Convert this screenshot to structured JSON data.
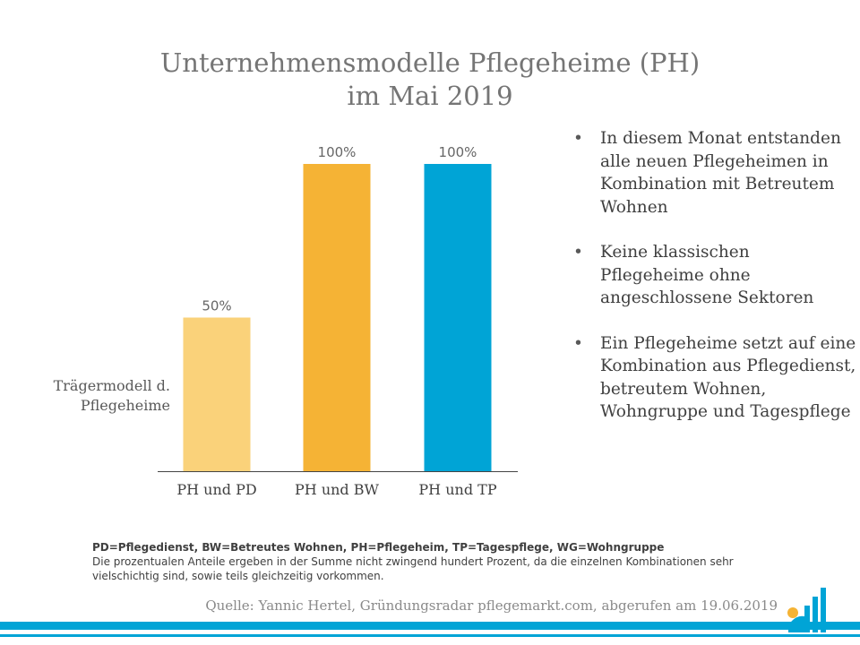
{
  "header": {
    "title_line1": "Unternehmensmodelle Pflegeheime (PH)",
    "title_line2": "im Mai 2019"
  },
  "chart_data": {
    "type": "bar",
    "categories": [
      "PH und PD",
      "PH und BW",
      "PH und TP"
    ],
    "values": [
      50,
      100,
      100
    ],
    "value_labels": [
      "50%",
      "100%",
      "100%"
    ],
    "colors": [
      "#fad27a",
      "#f5b335",
      "#00a4d6"
    ],
    "ylabel_lines": [
      "Trägermodell d.",
      "Pflegeheime"
    ],
    "ylim": [
      0,
      100
    ],
    "grid": false,
    "legend": "none"
  },
  "bullets": [
    "In diesem Monat entstanden alle neuen Pflegeheimen in Kombination mit Betreutem Wohnen",
    "Keine klassischen Pflegeheime ohne angeschlossene Sektoren",
    "Ein Pflegeheime setzt auf eine Kombination aus Pflegedienst, betreutem Wohnen, Wohngruppe und Tagespflege"
  ],
  "footnote": {
    "abbreviations": "PD=Pflegedienst, BW=Betreutes Wohnen, PH=Pflegeheim, TP=Tagespflege, WG=Wohngruppe",
    "text": "Die prozentualen Anteile ergeben in der Summe nicht zwingend hundert Prozent, da die einzelnen Kombinationen sehr vielschichtig sind, sowie teils gleichzeitig vorkommen."
  },
  "source": "Quelle: Yannic Hertel, Gründungsradar pflegemarkt.com, abgerufen am 19.06.2019",
  "brand_color": "#00a4d6",
  "logo": {
    "icon": "pflegemarkt-logo-icon"
  }
}
